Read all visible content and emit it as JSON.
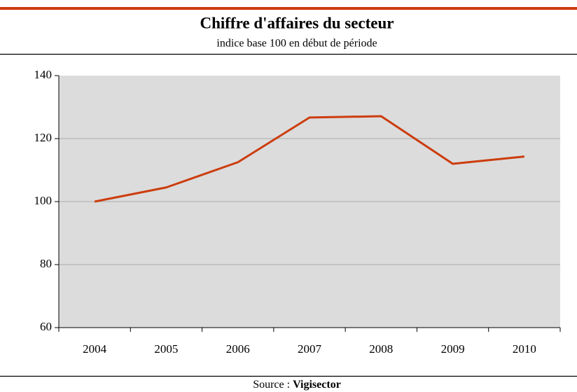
{
  "chart_data": {
    "type": "line",
    "title": "Chiffre d'affaires du secteur",
    "subtitle": "indice base 100 en début de période",
    "source_label": "Source :",
    "source_name": "Vigisector",
    "categories": [
      "2004",
      "2005",
      "2006",
      "2007",
      "2008",
      "2009",
      "2010"
    ],
    "values": [
      100,
      104.5,
      112.5,
      126.7,
      127.1,
      112,
      114.3
    ],
    "color": "#cc3d0e",
    "ylim": [
      60,
      140
    ],
    "yticks": [
      60,
      80,
      100,
      120,
      140
    ],
    "grid": true
  }
}
